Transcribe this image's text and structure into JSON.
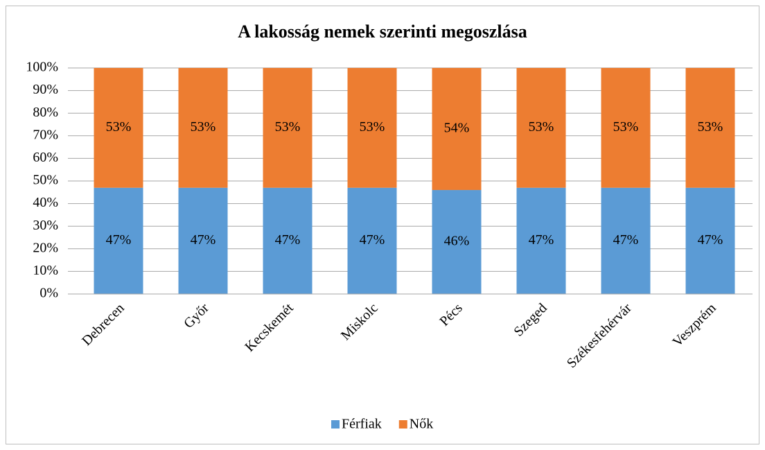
{
  "chart_data": {
    "type": "bar",
    "stacked": true,
    "title": "A lakosság nemek szerinti megoszlása",
    "categories": [
      "Debrecen",
      "Győr",
      "Kecskemét",
      "Miskolc",
      "Pécs",
      "Szeged",
      "Székesfehérvár",
      "Veszprém"
    ],
    "series": [
      {
        "name": "Férfiak",
        "color": "#5b9bd5",
        "values": [
          47,
          47,
          47,
          47,
          46,
          47,
          47,
          47
        ],
        "value_labels": [
          "47%",
          "47%",
          "47%",
          "47%",
          "46%",
          "47%",
          "47%",
          "47%"
        ]
      },
      {
        "name": "Nők",
        "color": "#ed7d31",
        "values": [
          53,
          53,
          53,
          53,
          54,
          53,
          53,
          53
        ],
        "value_labels": [
          "53%",
          "53%",
          "53%",
          "53%",
          "54%",
          "53%",
          "53%",
          "53%"
        ]
      }
    ],
    "ylim": [
      0,
      100
    ],
    "yticks": [
      {
        "value": 0,
        "label": "0%"
      },
      {
        "value": 10,
        "label": "10%"
      },
      {
        "value": 20,
        "label": "20%"
      },
      {
        "value": 30,
        "label": "30%"
      },
      {
        "value": 40,
        "label": "40%"
      },
      {
        "value": 50,
        "label": "50%"
      },
      {
        "value": 60,
        "label": "60%"
      },
      {
        "value": 70,
        "label": "70%"
      },
      {
        "value": 80,
        "label": "80%"
      },
      {
        "value": 90,
        "label": "90%"
      },
      {
        "value": 100,
        "label": "100%"
      }
    ],
    "grid": true,
    "legend": "bottom"
  }
}
